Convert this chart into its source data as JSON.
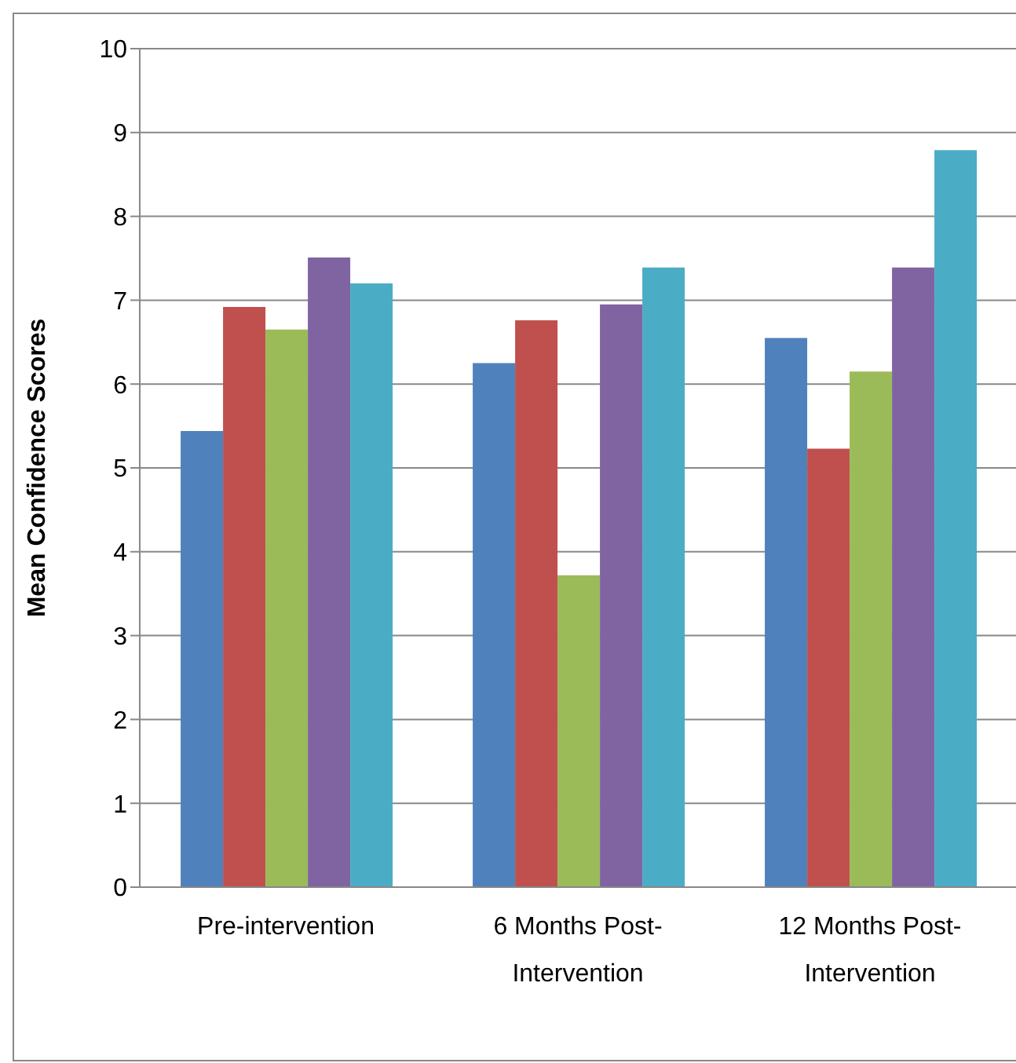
{
  "chart_data": {
    "type": "bar",
    "ylabel": "Mean Confidence Scores",
    "categories": [
      "Pre-intervention",
      "6 Months Post-Intervention",
      "12 Months Post-Intervention"
    ],
    "series": [
      {
        "color": "#4f81bd",
        "values": [
          5.44,
          6.25,
          6.55
        ]
      },
      {
        "color": "#c0504d",
        "values": [
          6.92,
          6.76,
          5.23
        ]
      },
      {
        "color": "#9bbb59",
        "values": [
          6.65,
          3.72,
          6.15
        ]
      },
      {
        "color": "#8064a2",
        "values": [
          7.51,
          6.95,
          7.39
        ]
      },
      {
        "color": "#4bacc6",
        "values": [
          7.2,
          7.39,
          8.79
        ]
      }
    ],
    "ylim": [
      0,
      10
    ],
    "yticks": [
      0,
      1,
      2,
      3,
      4,
      5,
      6,
      7,
      8,
      9,
      10
    ],
    "grid": "y",
    "legend": false
  }
}
